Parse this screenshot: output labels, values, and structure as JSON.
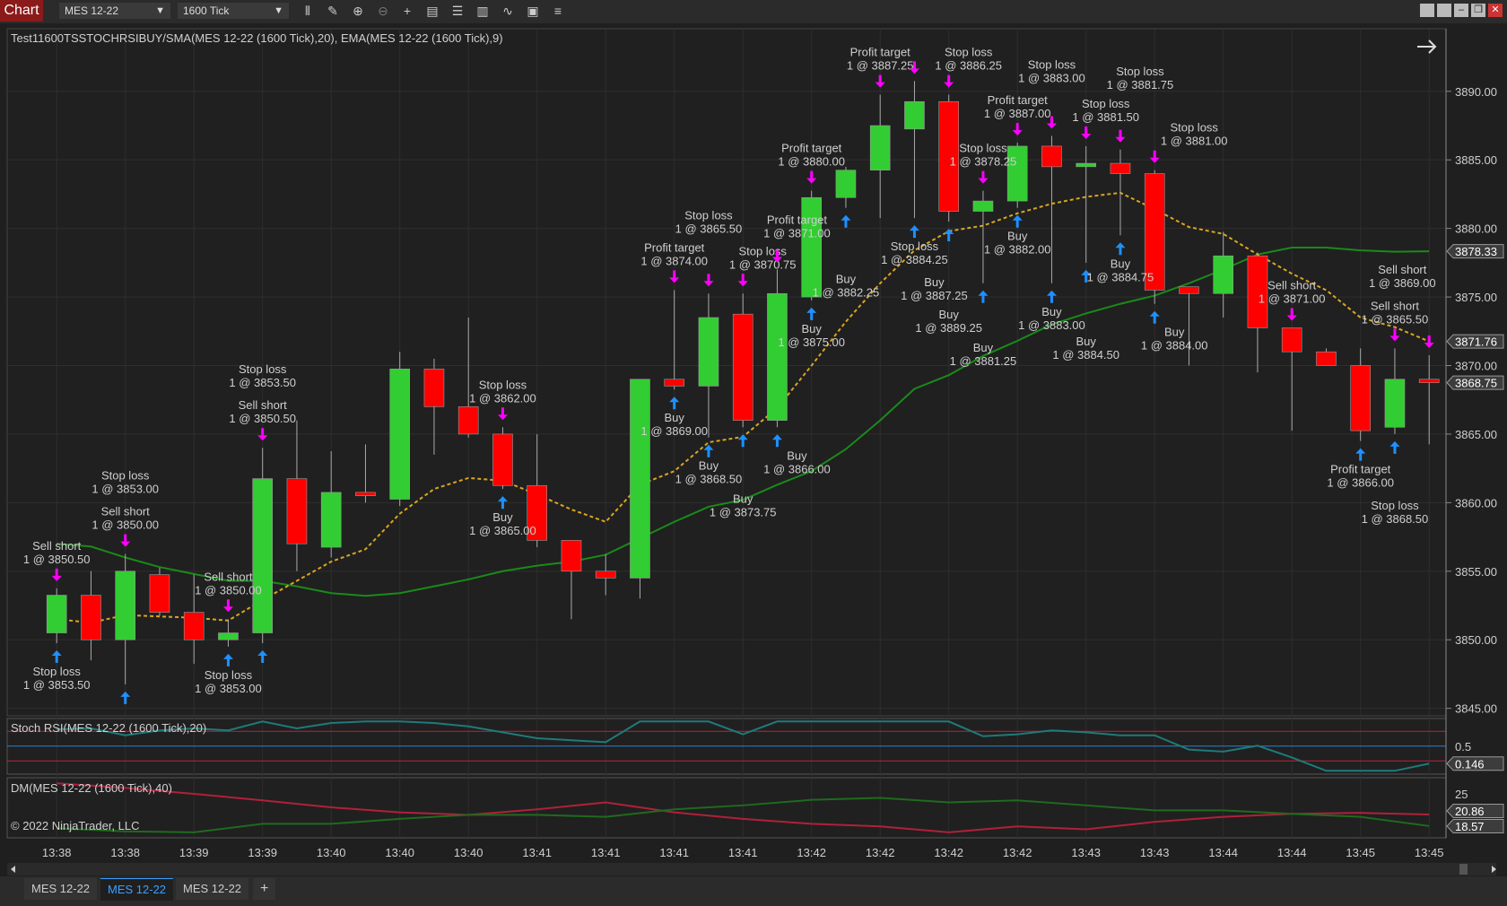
{
  "toolbar": {
    "app_label": "Chart",
    "instrument": "MES 12-22",
    "interval": "1600 Tick",
    "icons": [
      "bar-type-icon",
      "pencil-icon",
      "zoom-in-icon",
      "zoom-out-icon",
      "crosshair-icon",
      "data-box-icon",
      "strategies-icon",
      "indicators-icon",
      "drawing-tools-icon",
      "chart-trader-icon",
      "object-list-icon"
    ],
    "window_buttons": [
      "restore-icon",
      "tile-icon",
      "minimize-icon",
      "maximize-icon",
      "close-icon"
    ]
  },
  "chart": {
    "title": "Test11600TSSTOCHRSIBUY/SMA(MES 12-22 (1600 Tick),20), EMA(MES 12-22 (1600 Tick),9)",
    "stoch_title": "Stoch RSI(MES 12-22 (1600 Tick),20)",
    "dm_title": "DM(MES 12-22 (1600 Tick),40)",
    "copyright": "© 2022 NinjaTrader, LLC"
  },
  "colors": {
    "up": "#32cd32",
    "down": "#ff0000",
    "sma": "#1a8a1a",
    "ema": "#daa520",
    "stoch": "#1f7a7a",
    "dm_minus": "#b0203a",
    "dm_plus": "#1f6a1f",
    "sell_arrow": "#ff00ff",
    "buy_arrow": "#1e90ff"
  },
  "chart_data": {
    "type": "candlestick",
    "price_axis": {
      "ticks": [
        "3845.00",
        "3850.00",
        "3855.00",
        "3860.00",
        "3865.00",
        "3870.00",
        "3875.00",
        "3880.00",
        "3885.00",
        "3890.00"
      ],
      "range": [
        3843.5,
        3893.5
      ]
    },
    "price_markers": [
      {
        "label": "3878.33",
        "series": "SMA"
      },
      {
        "label": "3871.76",
        "series": "EMA"
      },
      {
        "label": "3868.75",
        "series": "Last"
      }
    ],
    "time_labels": [
      "13:38",
      "13:38",
      "13:39",
      "13:39",
      "13:40",
      "13:40",
      "13:40",
      "13:41",
      "13:41",
      "13:41",
      "13:41",
      "13:42",
      "13:42",
      "13:42",
      "13:42",
      "13:43",
      "13:43",
      "13:44",
      "13:44",
      "13:45",
      "13:45"
    ],
    "ohlc": [
      [
        3850.5,
        3853.75,
        3849.75,
        3853.25
      ],
      [
        3853.25,
        3855,
        3848.5,
        3850
      ],
      [
        3850,
        3856.25,
        3846.75,
        3855
      ],
      [
        3854.75,
        3855.25,
        3851.75,
        3852
      ],
      [
        3852,
        3854.75,
        3848.25,
        3850
      ],
      [
        3850,
        3851.5,
        3849.5,
        3850.5
      ],
      [
        3850.5,
        3864,
        3849.75,
        3861.75
      ],
      [
        3861.75,
        3866,
        3855,
        3857
      ],
      [
        3856.75,
        3863.75,
        3856,
        3860.75
      ],
      [
        3860.75,
        3864.25,
        3860,
        3860.5
      ],
      [
        3860.25,
        3871,
        3859.75,
        3869.75
      ],
      [
        3869.75,
        3870.5,
        3863.5,
        3867
      ],
      [
        3867,
        3873.5,
        3864.75,
        3865
      ],
      [
        3865,
        3865.5,
        3861,
        3861.25
      ],
      [
        3861.25,
        3865,
        3856.75,
        3857.25
      ],
      [
        3857.25,
        3857.25,
        3851.5,
        3855
      ],
      [
        3855,
        3856.25,
        3853.25,
        3854.5
      ],
      [
        3854.5,
        3869,
        3853,
        3869
      ],
      [
        3869,
        3875.5,
        3868.25,
        3868.5
      ],
      [
        3868.5,
        3875.25,
        3864.75,
        3873.5
      ],
      [
        3873.75,
        3875.25,
        3865.5,
        3866
      ],
      [
        3866,
        3877,
        3865.5,
        3875.25
      ],
      [
        3875,
        3882.75,
        3874.75,
        3882.25
      ],
      [
        3882.25,
        3884.5,
        3881.5,
        3884.25
      ],
      [
        3884.25,
        3889.75,
        3880.75,
        3887.5
      ],
      [
        3887.25,
        3890.75,
        3880.75,
        3889.25
      ],
      [
        3889.25,
        3889.75,
        3880.5,
        3881.25
      ],
      [
        3881.25,
        3882.75,
        3876,
        3882
      ],
      [
        3882,
        3886.25,
        3881.5,
        3886
      ],
      [
        3886,
        3886.75,
        3876,
        3884.5
      ],
      [
        3884.5,
        3886,
        3877.5,
        3884.75
      ],
      [
        3884.75,
        3885.75,
        3879.5,
        3884
      ],
      [
        3884,
        3884.25,
        3874.5,
        3875.5
      ],
      [
        3875.75,
        3875.75,
        3870,
        3875.25
      ],
      [
        3875.25,
        3879.75,
        3873.5,
        3878
      ],
      [
        3878,
        3878.25,
        3869.5,
        3872.75
      ],
      [
        3872.75,
        3872.75,
        3865.25,
        3871
      ],
      [
        3871,
        3871.25,
        3870,
        3870
      ],
      [
        3870,
        3871.25,
        3864.5,
        3865.25
      ],
      [
        3865.5,
        3871.25,
        3865,
        3869
      ],
      [
        3869,
        3870.75,
        3864.25,
        3868.75
      ]
    ],
    "series": [
      {
        "name": "SMA(MES 12-22 (1600 Tick),20)",
        "values": [
          3857.0,
          3856.8,
          3856.0,
          3855.3,
          3854.8,
          3854.3,
          3854.3,
          3853.9,
          3853.4,
          3853.2,
          3853.4,
          3853.9,
          3854.4,
          3855.0,
          3855.4,
          3855.7,
          3856.2,
          3857.4,
          3858.6,
          3859.7,
          3860.2,
          3861.3,
          3862.3,
          3863.9,
          3866.0,
          3868.3,
          3869.3,
          3870.7,
          3871.8,
          3873.0,
          3873.8,
          3874.5,
          3875.1,
          3876.0,
          3877.0,
          3878.1,
          3878.6,
          3878.6,
          3878.4,
          3878.3,
          3878.33
        ]
      },
      {
        "name": "EMA(MES 12-22 (1600 Tick),9)",
        "values": [
          3851.5,
          3851.25,
          3851.8,
          3851.7,
          3851.6,
          3851.4,
          3852.9,
          3854.3,
          3855.7,
          3856.6,
          3859.2,
          3861.0,
          3861.8,
          3861.6,
          3860.6,
          3859.5,
          3858.6,
          3861.3,
          3862.3,
          3864.4,
          3864.8,
          3866.9,
          3870.0,
          3873.2,
          3876.0,
          3878.4,
          3879.8,
          3880.2,
          3881.1,
          3881.8,
          3882.3,
          3882.6,
          3881.4,
          3880.1,
          3879.6,
          3878.1,
          3876.7,
          3875.5,
          3873.5,
          3872.8,
          3871.76
        ]
      }
    ],
    "annotations": [
      {
        "bar": 1,
        "side": "above",
        "label": "Sell short",
        "fill": "1 @ 3850.50"
      },
      {
        "bar": 3,
        "side": "above",
        "label": "Sell short",
        "fill": "1 @ 3850.00"
      },
      {
        "bar": 6,
        "side": "above",
        "label": "Sell short",
        "fill": "1 @ 3850.00"
      },
      {
        "bar": 7,
        "side": "above",
        "label": "Sell short",
        "fill": "1 @ 3850.50"
      },
      {
        "bar": 14,
        "side": "above",
        "label": "Stop loss",
        "fill": "1 @ 3862.00"
      },
      {
        "bar": 19,
        "side": "above",
        "label": "Profit target",
        "fill": "1 @ 3874.00"
      },
      {
        "bar": 20,
        "side": "above",
        "label": "Stop loss",
        "fill": "1 @ 3865.50"
      },
      {
        "bar": 21,
        "side": "above",
        "label": "Stop loss",
        "fill": "1 @ 3870.75"
      },
      {
        "bar": 22,
        "side": "above",
        "label": "Profit target",
        "fill": "1 @ 3871.00"
      },
      {
        "bar": 23,
        "side": "above",
        "label": "Profit target",
        "fill": "1 @ 3880.00"
      },
      {
        "bar": 25,
        "side": "above",
        "label": "Profit target",
        "fill": "1 @ 3887.25"
      },
      {
        "bar": 26,
        "side": "above",
        "label": "Stop loss",
        "fill": "1 @ 3884.25"
      },
      {
        "bar": 27,
        "side": "above",
        "label": "Stop loss",
        "fill": "1 @ 3886.25"
      },
      {
        "bar": 28,
        "side": "above",
        "label": "Stop loss",
        "fill": "1 @ 3878.25"
      },
      {
        "bar": 29,
        "side": "above",
        "label": "Profit target",
        "fill": "1 @ 3887.00"
      },
      {
        "bar": 30,
        "side": "above",
        "label": "Stop loss",
        "fill": "1 @ 3883.00"
      },
      {
        "bar": 31,
        "side": "above",
        "label": "Stop loss",
        "fill": "1 @ 3881.50"
      },
      {
        "bar": 32,
        "side": "above",
        "label": "Stop loss",
        "fill": "1 @ 3881.75"
      },
      {
        "bar": 33,
        "side": "above",
        "label": "Stop loss",
        "fill": "1 @ 3881.00"
      },
      {
        "bar": 37,
        "side": "above",
        "label": "Sell short",
        "fill": "1 @ 3871.00"
      },
      {
        "bar": 40,
        "side": "above",
        "label": "Sell short",
        "fill": "1 @ 3865.50"
      },
      {
        "bar": 41,
        "side": "above",
        "label": "Sell short",
        "fill": "1 @ 3869.00"
      },
      {
        "bar": 1,
        "side": "below",
        "label": "Stop loss",
        "fill": "1 @ 3853.50"
      },
      {
        "bar": 3,
        "side": "below",
        "label": "Stop loss",
        "fill": "1 @ 3853.00"
      },
      {
        "bar": 6,
        "side": "below",
        "label": "Stop loss",
        "fill": "1 @ 3853.00"
      },
      {
        "bar": 7,
        "side": "below",
        "label": "Stop loss",
        "fill": "1 @ 3853.50"
      },
      {
        "bar": 14,
        "side": "below",
        "label": "Buy",
        "fill": "1 @ 3865.00"
      },
      {
        "bar": 19,
        "side": "below",
        "label": "Buy",
        "fill": "1 @ 3869.00"
      },
      {
        "bar": 20,
        "side": "below",
        "label": "Buy",
        "fill": "1 @ 3868.50"
      },
      {
        "bar": 21,
        "side": "below",
        "label": "Buy",
        "fill": "1 @ 3873.75"
      },
      {
        "bar": 22,
        "side": "below",
        "label": "Buy",
        "fill": "1 @ 3866.00"
      },
      {
        "bar": 23,
        "side": "below",
        "label": "Buy",
        "fill": "1 @ 3875.00"
      },
      {
        "bar": 24,
        "side": "below",
        "label": "Buy",
        "fill": "1 @ 3882.25"
      },
      {
        "bar": 26,
        "side": "below",
        "label": "Buy",
        "fill": "1 @ 3887.25"
      },
      {
        "bar": 27,
        "side": "below",
        "label": "Buy",
        "fill": "1 @ 3889.25"
      },
      {
        "bar": 28,
        "side": "below",
        "label": "Buy",
        "fill": "1 @ 3881.25"
      },
      {
        "bar": 29,
        "side": "below",
        "label": "Buy",
        "fill": "1 @ 3882.00"
      },
      {
        "bar": 30,
        "side": "below",
        "label": "Buy",
        "fill": "1 @ 3883.00"
      },
      {
        "bar": 31,
        "side": "below",
        "label": "Buy",
        "fill": "1 @ 3884.50"
      },
      {
        "bar": 32,
        "side": "below",
        "label": "Buy",
        "fill": "1 @ 3884.75"
      },
      {
        "bar": 33,
        "side": "below",
        "label": "Buy",
        "fill": "1 @ 3884.00"
      },
      {
        "bar": 39,
        "side": "below",
        "label": "Profit target",
        "fill": "1 @ 3866.00"
      },
      {
        "bar": 40,
        "side": "below",
        "label": "Stop loss",
        "fill": "1 @ 3868.50"
      }
    ],
    "stoch_rsi": {
      "axis_ticks": [
        "0.5"
      ],
      "levels": [
        0.8,
        0.5,
        0.2
      ],
      "last": "0.146",
      "values": [
        0.84,
        0.86,
        0.72,
        0.82,
        0.86,
        0.82,
        1.0,
        0.86,
        0.97,
        1.0,
        1.0,
        0.97,
        0.9,
        0.78,
        0.66,
        0.62,
        0.58,
        1.0,
        1.0,
        1.0,
        0.74,
        1.0,
        1.0,
        1.0,
        1.0,
        1.0,
        1.0,
        0.7,
        0.74,
        0.82,
        0.78,
        0.72,
        0.72,
        0.43,
        0.39,
        0.51,
        0.27,
        0.0,
        0.0,
        0.0,
        0.146
      ]
    },
    "dm": {
      "axis_ticks": [
        "25"
      ],
      "last_minus": "20.86",
      "last_plus": "18.57",
      "bars": [
        1,
        3,
        5,
        7,
        9,
        11,
        13,
        15,
        17,
        19,
        21,
        23,
        25,
        27,
        29,
        31,
        33,
        35,
        37,
        39,
        41
      ],
      "dm_minus": [
        27.1,
        26.2,
        25.0,
        23.7,
        22.3,
        21.3,
        20.8,
        21.9,
        23.3,
        21.3,
        20.0,
        19.0,
        18.5,
        17.3,
        18.5,
        17.9,
        19.4,
        20.4,
        21.0,
        21.2,
        20.86
      ],
      "dm_plus": [
        18.1,
        17.5,
        17.3,
        19.0,
        19.0,
        20.0,
        20.8,
        20.8,
        20.4,
        21.9,
        22.7,
        23.8,
        24.2,
        23.3,
        23.7,
        22.7,
        21.7,
        21.7,
        21.0,
        20.4,
        18.57
      ]
    }
  },
  "tabs": [
    {
      "label": "MES 12-22",
      "active": false
    },
    {
      "label": "MES 12-22",
      "active": true
    },
    {
      "label": "MES 12-22",
      "active": false
    }
  ],
  "add_tab_label": "+"
}
